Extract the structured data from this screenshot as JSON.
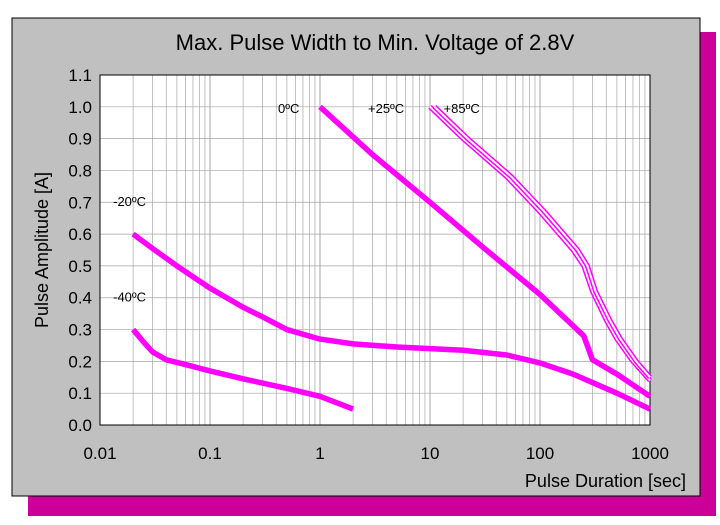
{
  "chart_data": {
    "type": "line",
    "title": "Max. Pulse Width to Min. Voltage of 2.8V",
    "xlabel": "Pulse Duration [sec]",
    "ylabel": "Pulse Amplitude [A]",
    "xscale": "log",
    "xlim": [
      0.01,
      1000
    ],
    "ylim": [
      0,
      1.1
    ],
    "x_ticks": [
      0.01,
      0.1,
      1,
      10,
      100,
      1000
    ],
    "x_tick_labels": [
      "0.01",
      "0.1",
      "1",
      "10",
      "100",
      "1000"
    ],
    "y_ticks": [
      0,
      0.1,
      0.2,
      0.3,
      0.4,
      0.5,
      0.6,
      0.7,
      0.8,
      0.9,
      1.0,
      1.1
    ],
    "y_tick_labels": [
      "0.0",
      "0.1",
      "0.2",
      "0.3",
      "0.4",
      "0.5",
      "0.6",
      "0.7",
      "0.8",
      "0.9",
      "1.0",
      "1.1"
    ],
    "grid": true,
    "legend": "inline labels",
    "colors": {
      "series": "#ff00ff",
      "frame_shadow": "#cc0099",
      "frame": "#c0c0c0",
      "plot_background": "#ffffff",
      "grid": "#a6a6a6"
    },
    "series": [
      {
        "name": "-40ºC",
        "style": "thick",
        "points": [
          [
            0.02,
            0.3
          ],
          [
            0.025,
            0.26
          ],
          [
            0.03,
            0.23
          ],
          [
            0.04,
            0.205
          ],
          [
            0.06,
            0.19
          ],
          [
            0.1,
            0.17
          ],
          [
            0.2,
            0.145
          ],
          [
            0.5,
            0.115
          ],
          [
            1,
            0.09
          ],
          [
            2,
            0.05
          ]
        ]
      },
      {
        "name": "-20ºC",
        "style": "thick",
        "points": [
          [
            0.02,
            0.6
          ],
          [
            0.03,
            0.555
          ],
          [
            0.05,
            0.5
          ],
          [
            0.1,
            0.43
          ],
          [
            0.2,
            0.37
          ],
          [
            0.3,
            0.34
          ],
          [
            0.5,
            0.3
          ],
          [
            1,
            0.27
          ],
          [
            2,
            0.255
          ],
          [
            5,
            0.245
          ],
          [
            10,
            0.24
          ],
          [
            20,
            0.235
          ],
          [
            50,
            0.22
          ],
          [
            100,
            0.195
          ],
          [
            200,
            0.16
          ],
          [
            500,
            0.1
          ],
          [
            1000,
            0.05
          ]
        ]
      },
      {
        "name": "0ºC",
        "style": "thick",
        "points": [
          [
            1,
            1.0
          ],
          [
            3,
            0.85
          ],
          [
            10,
            0.7
          ],
          [
            30,
            0.56
          ],
          [
            100,
            0.41
          ],
          [
            250,
            0.28
          ],
          [
            300,
            0.205
          ],
          [
            500,
            0.16
          ],
          [
            1000,
            0.09
          ]
        ]
      },
      {
        "name": "+25ºC",
        "style": "double",
        "points": [
          [
            10,
            1.0
          ],
          [
            20,
            0.9
          ],
          [
            50,
            0.78
          ],
          [
            100,
            0.67
          ],
          [
            200,
            0.55
          ],
          [
            250,
            0.5
          ],
          [
            300,
            0.42
          ],
          [
            400,
            0.33
          ],
          [
            500,
            0.27
          ],
          [
            700,
            0.2
          ],
          [
            1000,
            0.14
          ]
        ]
      },
      {
        "name": "+85ºC",
        "style": "double",
        "points": [
          [
            11,
            1.0
          ],
          [
            22,
            0.9
          ],
          [
            55,
            0.78
          ],
          [
            110,
            0.67
          ],
          [
            220,
            0.55
          ],
          [
            270,
            0.5
          ],
          [
            320,
            0.42
          ],
          [
            430,
            0.33
          ],
          [
            540,
            0.27
          ],
          [
            750,
            0.2
          ],
          [
            1000,
            0.15
          ]
        ]
      }
    ]
  }
}
